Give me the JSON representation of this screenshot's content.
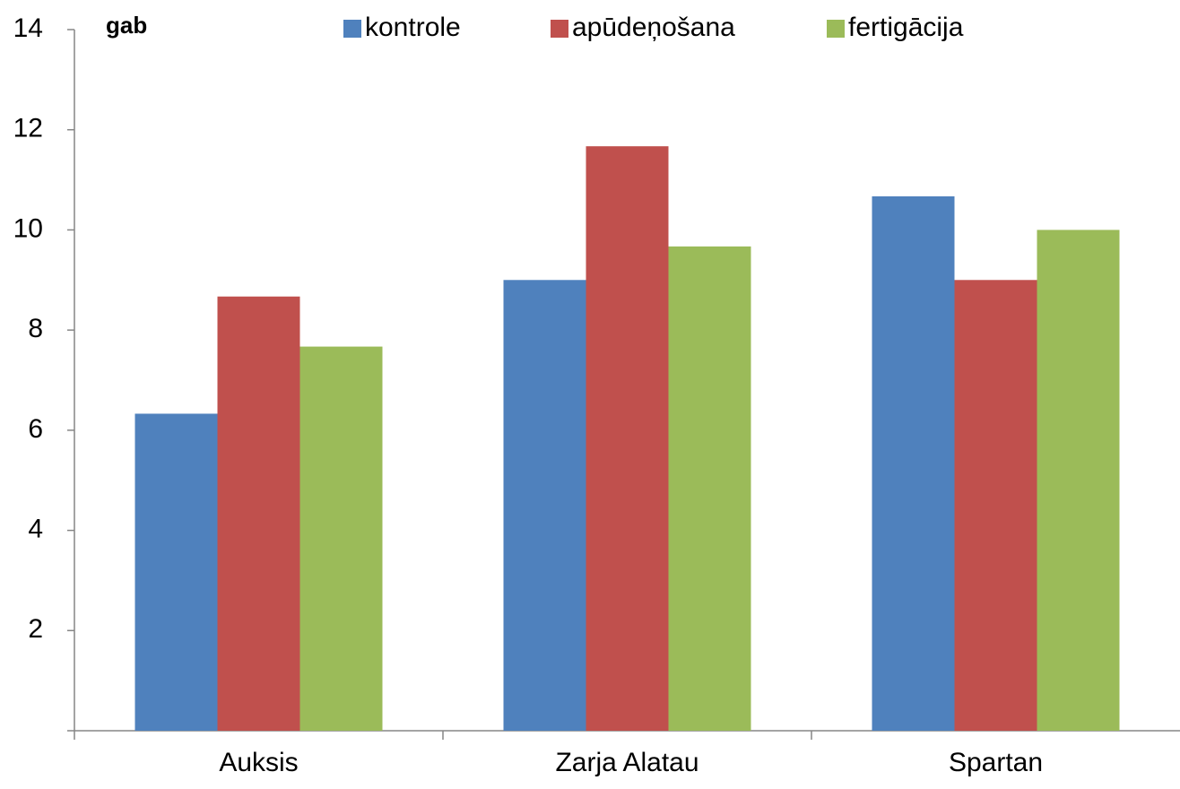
{
  "chart_data": {
    "type": "bar",
    "y_label": "gab",
    "categories": [
      "Auksis",
      "Zarja Alatau",
      "Spartan"
    ],
    "series": [
      {
        "name": "kontrole",
        "color": "#4f81bd",
        "values": [
          6.33,
          9,
          10.67
        ]
      },
      {
        "name": "apūdeņošana",
        "color": "#c0504d",
        "values": [
          8.67,
          11.67,
          9
        ]
      },
      {
        "name": "fertigācija",
        "color": "#9bbb59",
        "values": [
          7.67,
          9.67,
          10
        ]
      }
    ],
    "ylim": [
      0,
      14
    ],
    "yticks": [
      2,
      4,
      6,
      8,
      10,
      12,
      14
    ],
    "grid": false,
    "legend": "top"
  }
}
